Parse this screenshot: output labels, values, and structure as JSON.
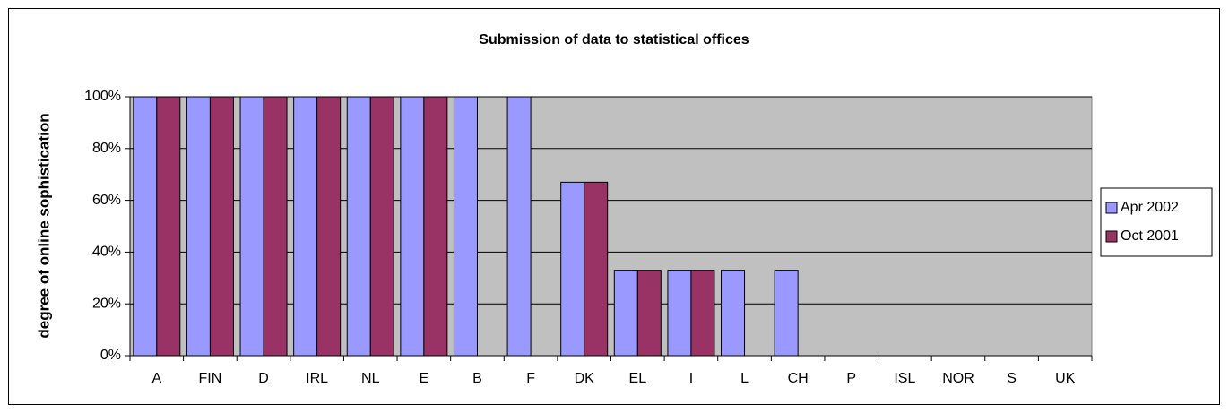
{
  "chart_data": {
    "type": "bar",
    "title": "Submission of data to statistical offices",
    "y_label": "degree of online sophistication",
    "categories": [
      "A",
      "FIN",
      "D",
      "IRL",
      "NL",
      "E",
      "B",
      "F",
      "DK",
      "EL",
      "I",
      "L",
      "CH",
      "P",
      "ISL",
      "NOR",
      "S",
      "UK"
    ],
    "series": [
      {
        "name": "Apr 2002",
        "color": "#9999ff",
        "values": [
          100,
          100,
          100,
          100,
          100,
          100,
          100,
          100,
          67,
          33,
          33,
          33,
          33,
          0,
          0,
          0,
          0,
          0
        ]
      },
      {
        "name": "Oct 2001",
        "color": "#993366",
        "values": [
          100,
          100,
          100,
          100,
          100,
          100,
          0,
          0,
          67,
          33,
          33,
          0,
          0,
          0,
          0,
          0,
          0,
          0
        ]
      }
    ],
    "ylim": [
      0,
      100
    ],
    "yticks": [
      {
        "value": 0,
        "label": "0%"
      },
      {
        "value": 20,
        "label": "20%"
      },
      {
        "value": 40,
        "label": "40%"
      },
      {
        "value": 60,
        "label": "60%"
      },
      {
        "value": 80,
        "label": "80%"
      },
      {
        "value": 100,
        "label": "100%"
      }
    ],
    "grid": true,
    "legend": "right",
    "plot_background": "#c0c0c0"
  }
}
